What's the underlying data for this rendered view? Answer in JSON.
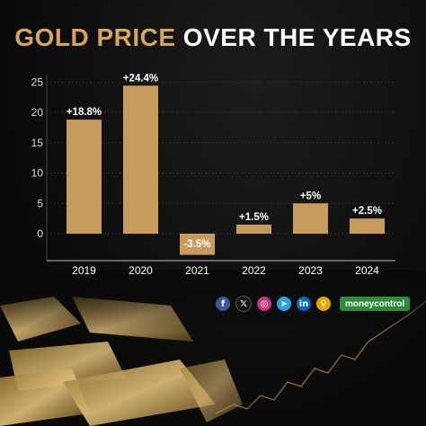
{
  "title": {
    "part1": "GOLD PRICE",
    "part2": " OVER THE YEARS"
  },
  "chart_data": {
    "type": "bar",
    "categories": [
      "2019",
      "2020",
      "2021",
      "2022",
      "2023",
      "2024"
    ],
    "values": [
      18.8,
      24.4,
      -3.5,
      1.5,
      5,
      2.5
    ],
    "data_labels": [
      "+18.8%",
      "+24.4%",
      "-3.5%",
      "+1.5%",
      "+5%",
      "+2.5%"
    ],
    "yticks": [
      "25",
      "20",
      "15",
      "10",
      "5",
      "0"
    ],
    "ylim": [
      -3.5,
      25
    ],
    "grid": true,
    "bar_color": "#c79a5e",
    "label_color": "#ffffff"
  },
  "footer": {
    "icons": [
      "facebook-icon",
      "x-icon",
      "instagram-icon",
      "telegram-icon",
      "linkedin-icon",
      "link-icon"
    ],
    "brand": "moneycontrol"
  }
}
